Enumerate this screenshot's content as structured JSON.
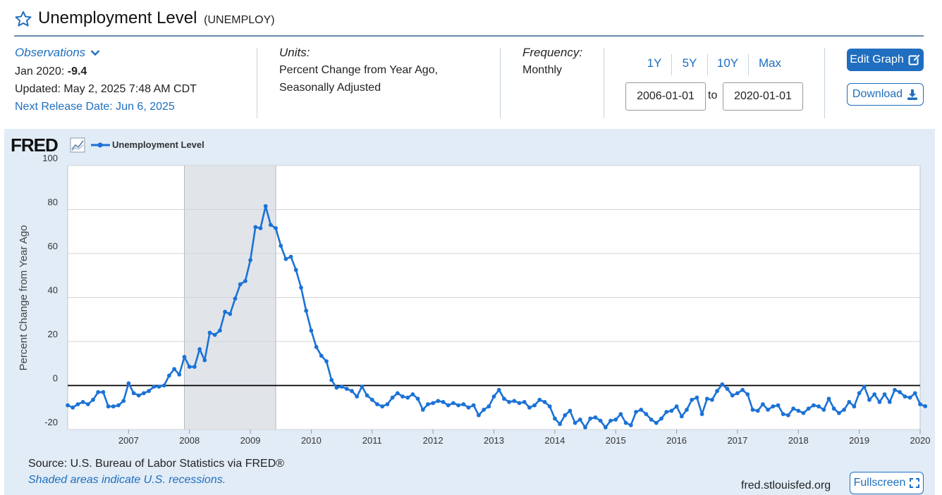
{
  "header": {
    "title": "Unemployment Level",
    "series_code": "(UNEMPLOY)"
  },
  "observations": {
    "label": "Observations",
    "latest_label": "Jan 2020:",
    "latest_value": "-9.4",
    "updated": "Updated: May 2, 2025 7:48 AM CDT",
    "next_release": "Next Release Date: Jun 6, 2025"
  },
  "units": {
    "label": "Units:",
    "line1": "Percent Change from Year Ago,",
    "line2": "Seasonally Adjusted"
  },
  "frequency": {
    "label": "Frequency:",
    "value": "Monthly"
  },
  "range_buttons": [
    "1Y",
    "5Y",
    "10Y",
    "Max"
  ],
  "date_range": {
    "start": "2006-01-01",
    "to_label": "to",
    "end": "2020-01-01"
  },
  "actions": {
    "edit_graph": "Edit Graph",
    "download": "Download",
    "fullscreen": "Fullscreen"
  },
  "footer": {
    "logo": "FRED",
    "source": "Source: U.S. Bureau of Labor Statistics via FRED®",
    "shaded_note": "Shaded areas indicate U.S. recessions.",
    "site": "fred.stlouisfed.org"
  },
  "colors": {
    "accent": "#1f6ebf",
    "series": "#1b72d6",
    "panel": "#e1ecf7",
    "recession": "#e1e5ea"
  },
  "chart_data": {
    "type": "line",
    "title": "",
    "xlabel": "",
    "ylabel": "Percent Change from Year Ago",
    "ylim": [
      -20,
      100
    ],
    "yticks": [
      -20,
      0,
      20,
      40,
      60,
      80,
      100
    ],
    "x_start": "2006-01",
    "x_end": "2020-01",
    "xticks": [
      "2007",
      "2008",
      "2009",
      "2010",
      "2011",
      "2012",
      "2013",
      "2014",
      "2015",
      "2016",
      "2017",
      "2018",
      "2019",
      "2020"
    ],
    "grid": true,
    "legend_position": "top-left",
    "recession": {
      "start": "2007-12",
      "end": "2009-06"
    },
    "series": [
      {
        "name": "Unemployment Level",
        "start": "2006-01",
        "frequency": "monthly",
        "values": [
          -9,
          -10,
          -8.5,
          -7.5,
          -8.5,
          -6.5,
          -3,
          -3,
          -9.5,
          -9.5,
          -9,
          -7,
          1,
          -3.5,
          -4.5,
          -3.5,
          -2.5,
          -0.5,
          -0.5,
          0,
          4.5,
          7.5,
          5,
          13,
          8.5,
          8.5,
          16.5,
          11.5,
          24,
          23,
          25,
          33.5,
          32.5,
          39.5,
          46,
          47.5,
          57,
          72,
          71.5,
          81.5,
          73,
          71.5,
          63.5,
          57.5,
          58.5,
          52.5,
          44.5,
          34,
          25,
          17.5,
          13.5,
          11,
          2.5,
          -1,
          -0.5,
          -1.5,
          -2.5,
          -5,
          -0.5,
          -4.5,
          -6.5,
          -8.5,
          -9.5,
          -8.5,
          -5.5,
          -3.5,
          -5,
          -5.5,
          -4,
          -6,
          -11,
          -8.5,
          -8,
          -7,
          -7.5,
          -9,
          -8,
          -9,
          -8.5,
          -10,
          -9,
          -13.5,
          -11,
          -9.5,
          -5,
          -2,
          -6,
          -7.5,
          -7,
          -8,
          -7.5,
          -10,
          -9,
          -6.5,
          -7.5,
          -9.5,
          -15,
          -17.5,
          -13.5,
          -11.5,
          -17,
          -15.5,
          -19,
          -15,
          -14.5,
          -16,
          -19,
          -16,
          -15.5,
          -13,
          -17,
          -18,
          -12,
          -11,
          -13,
          -15.5,
          -17,
          -15,
          -12,
          -11.5,
          -9.5,
          -14,
          -11,
          -6.5,
          -5.5,
          -13,
          -6,
          -6.5,
          -2.5,
          0.5,
          -1.5,
          -4.5,
          -3.5,
          -2,
          -4,
          -11,
          -11.5,
          -8.5,
          -11,
          -9.5,
          -9,
          -13,
          -13.5,
          -10.5,
          -11.5,
          -12.5,
          -10.5,
          -9,
          -9.5,
          -11,
          -6,
          -10.5,
          -12.5,
          -11,
          -7.5,
          -9.5,
          -3.5,
          -0.5,
          -6.5,
          -4,
          -7.5,
          -4,
          -7.5,
          -2,
          -3,
          -5,
          -5.5,
          -3.5,
          -8.5,
          -9.4
        ]
      }
    ]
  }
}
